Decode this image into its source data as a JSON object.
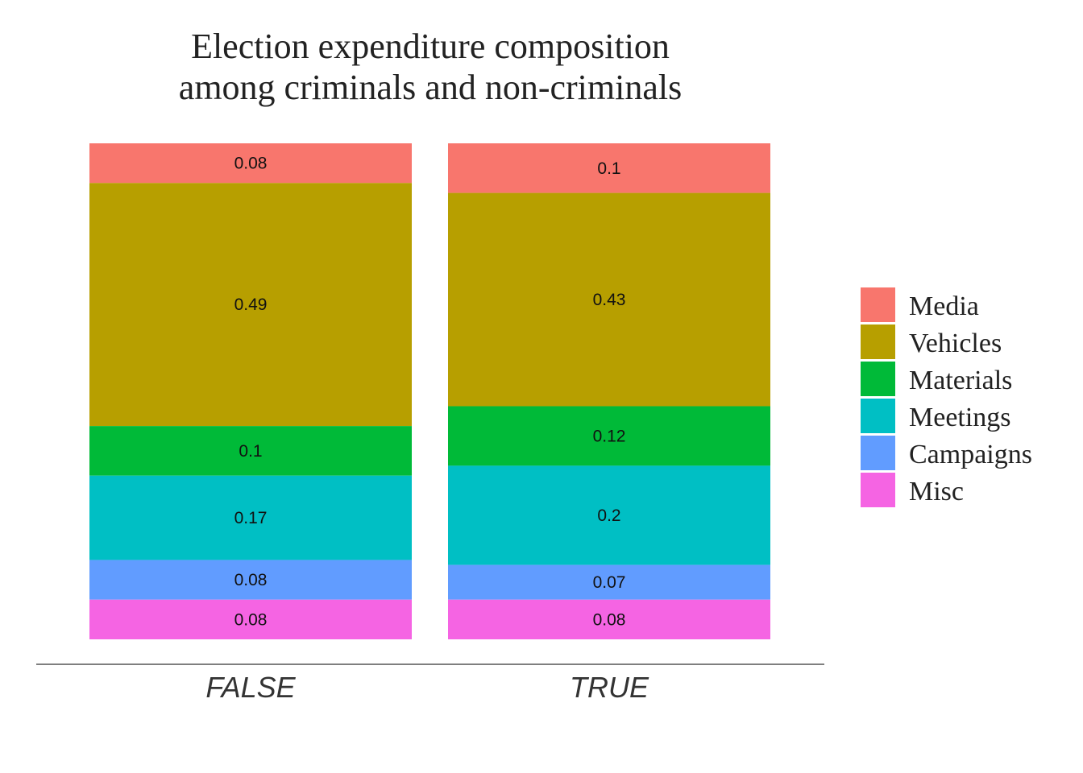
{
  "chart_data": {
    "type": "bar",
    "stacked": true,
    "title_lines": [
      "Election expenditure composition",
      "among criminals and non-criminals"
    ],
    "xlabel": "",
    "ylabel": "",
    "categories": [
      "FALSE",
      "TRUE"
    ],
    "ylim": [
      0,
      1
    ],
    "grid": false,
    "legend_position": "right",
    "series": [
      {
        "name": "Media",
        "color": "#F8766D",
        "values": [
          0.08,
          0.1
        ],
        "labels": [
          "0.08",
          "0.1"
        ]
      },
      {
        "name": "Vehicles",
        "color": "#B79F00",
        "values": [
          0.49,
          0.43
        ],
        "labels": [
          "0.49",
          "0.43"
        ]
      },
      {
        "name": "Materials",
        "color": "#00BA38",
        "values": [
          0.1,
          0.12
        ],
        "labels": [
          "0.1",
          "0.12"
        ]
      },
      {
        "name": "Meetings",
        "color": "#00BFC4",
        "values": [
          0.17,
          0.2
        ],
        "labels": [
          "0.17",
          "0.2"
        ]
      },
      {
        "name": "Campaigns",
        "color": "#619CFF",
        "values": [
          0.08,
          0.07
        ],
        "labels": [
          "0.08",
          "0.07"
        ]
      },
      {
        "name": "Misc",
        "color": "#F564E3",
        "values": [
          0.08,
          0.08
        ],
        "labels": [
          "0.08",
          "0.08"
        ]
      }
    ]
  }
}
